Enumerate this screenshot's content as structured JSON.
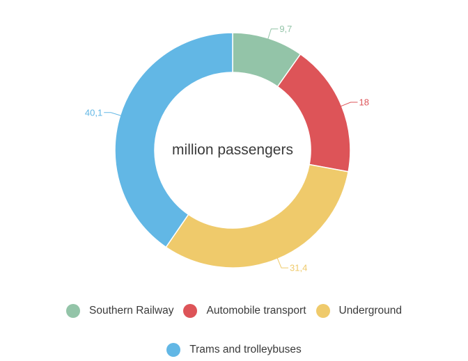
{
  "chart_data": {
    "type": "pie",
    "variant": "donut",
    "center_label": "million passengers",
    "slices": [
      {
        "name": "Southern Railway",
        "value": 9.7,
        "label": "9,7",
        "color": "#93c4a8"
      },
      {
        "name": "Automobile transport",
        "value": 18,
        "label": "18",
        "color": "#dd5458"
      },
      {
        "name": "Underground",
        "value": 31.4,
        "label": "31,4",
        "color": "#efca6b"
      },
      {
        "name": "Trams and trolleybuses",
        "value": 40.1,
        "label": "40,1",
        "color": "#62b7e5"
      }
    ],
    "legend_position": "bottom"
  }
}
